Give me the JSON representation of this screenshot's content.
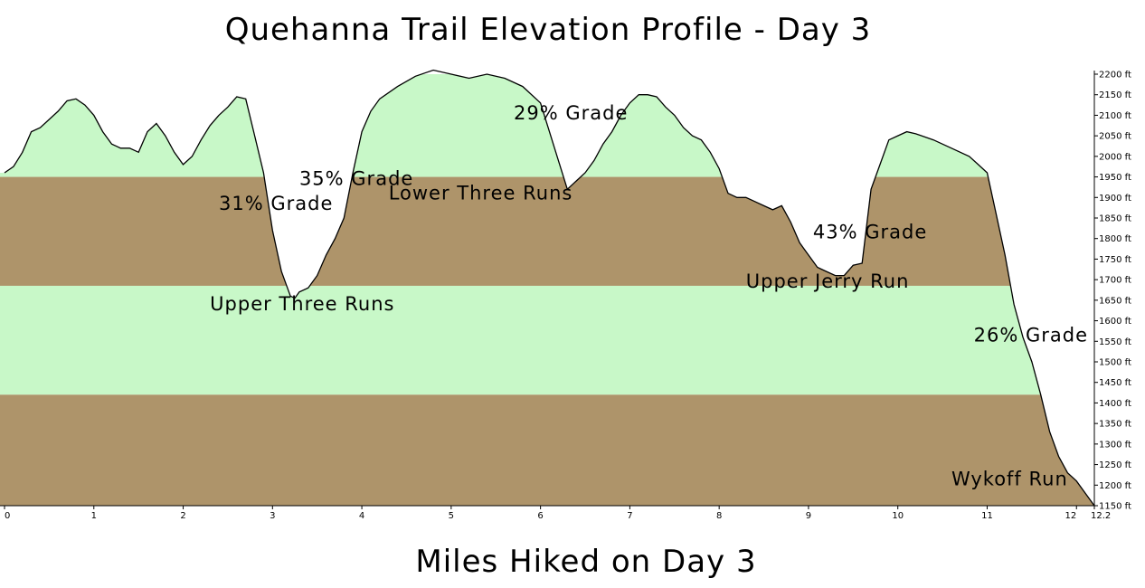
{
  "chart_data": {
    "type": "area",
    "title": "Quehanna Trail Elevation Profile - Day 3",
    "xlabel": "Miles Hiked on Day 3",
    "ylabel": "",
    "xlim": [
      0,
      12.2
    ],
    "ylim": [
      1150,
      2200
    ],
    "x_ticks": [
      {
        "value": 0,
        "label": "0"
      },
      {
        "value": 1,
        "label": "1"
      },
      {
        "value": 2,
        "label": "2"
      },
      {
        "value": 3,
        "label": "3"
      },
      {
        "value": 4,
        "label": "4"
      },
      {
        "value": 5,
        "label": "5"
      },
      {
        "value": 6,
        "label": "6"
      },
      {
        "value": 7,
        "label": "7"
      },
      {
        "value": 8,
        "label": "8"
      },
      {
        "value": 9,
        "label": "9"
      },
      {
        "value": 10,
        "label": "10"
      },
      {
        "value": 11,
        "label": "11"
      },
      {
        "value": 12,
        "label": "12"
      },
      {
        "value": 12.2,
        "label": "12.2"
      }
    ],
    "y_ticks": [
      {
        "value": 2200,
        "label": "2200 ft"
      },
      {
        "value": 2150,
        "label": "2150 ft"
      },
      {
        "value": 2100,
        "label": "2100 ft"
      },
      {
        "value": 2050,
        "label": "2050 ft"
      },
      {
        "value": 2000,
        "label": "2000 ft"
      },
      {
        "value": 1950,
        "label": "1950 ft"
      },
      {
        "value": 1900,
        "label": "1900 ft"
      },
      {
        "value": 1850,
        "label": "1850 ft"
      },
      {
        "value": 1800,
        "label": "1800 ft"
      },
      {
        "value": 1750,
        "label": "1750 ft"
      },
      {
        "value": 1700,
        "label": "1700 ft"
      },
      {
        "value": 1650,
        "label": "1650 ft"
      },
      {
        "value": 1600,
        "label": "1600 ft"
      },
      {
        "value": 1550,
        "label": "1550 ft"
      },
      {
        "value": 1500,
        "label": "1500 ft"
      },
      {
        "value": 1450,
        "label": "1450 ft"
      },
      {
        "value": 1400,
        "label": "1400 ft"
      },
      {
        "value": 1350,
        "label": "1350 ft"
      },
      {
        "value": 1300,
        "label": "1300 ft"
      },
      {
        "value": 1250,
        "label": "1250 ft"
      },
      {
        "value": 1200,
        "label": "1200 ft"
      },
      {
        "value": 1150,
        "label": "1150 ft"
      }
    ],
    "bands": [
      {
        "from": 1950,
        "to": 2200,
        "color": "#c8f8c8"
      },
      {
        "from": 1685,
        "to": 1950,
        "color": "#ae946a"
      },
      {
        "from": 1420,
        "to": 1685,
        "color": "#c8f8c8"
      },
      {
        "from": 1150,
        "to": 1420,
        "color": "#ae946a"
      }
    ],
    "profile": {
      "x": [
        0,
        0.1,
        0.2,
        0.3,
        0.4,
        0.5,
        0.6,
        0.7,
        0.8,
        0.9,
        1.0,
        1.1,
        1.2,
        1.3,
        1.4,
        1.5,
        1.6,
        1.7,
        1.8,
        1.9,
        2.0,
        2.1,
        2.2,
        2.3,
        2.4,
        2.5,
        2.6,
        2.7,
        2.8,
        2.9,
        3.0,
        3.1,
        3.2,
        3.25,
        3.3,
        3.4,
        3.5,
        3.6,
        3.7,
        3.8,
        3.9,
        4.0,
        4.1,
        4.2,
        4.4,
        4.6,
        4.8,
        5.0,
        5.2,
        5.4,
        5.6,
        5.8,
        6.0,
        6.1,
        6.2,
        6.3,
        6.4,
        6.5,
        6.6,
        6.7,
        6.8,
        6.9,
        7.0,
        7.1,
        7.2,
        7.3,
        7.4,
        7.5,
        7.6,
        7.7,
        7.8,
        7.9,
        8.0,
        8.1,
        8.2,
        8.3,
        8.4,
        8.5,
        8.6,
        8.7,
        8.8,
        8.9,
        9.0,
        9.1,
        9.2,
        9.3,
        9.4,
        9.5,
        9.6,
        9.7,
        9.8,
        9.9,
        10.0,
        10.1,
        10.2,
        10.4,
        10.6,
        10.8,
        10.9,
        11.0,
        11.1,
        11.2,
        11.3,
        11.4,
        11.5,
        11.6,
        11.7,
        11.8,
        11.9,
        12.0,
        12.1,
        12.2
      ],
      "y": [
        1960,
        1975,
        2010,
        2060,
        2070,
        2090,
        2110,
        2135,
        2140,
        2125,
        2100,
        2060,
        2030,
        2020,
        2020,
        2010,
        2060,
        2080,
        2050,
        2010,
        1980,
        2000,
        2040,
        2075,
        2100,
        2120,
        2145,
        2140,
        2050,
        1960,
        1820,
        1720,
        1660,
        1655,
        1670,
        1680,
        1710,
        1760,
        1800,
        1850,
        1960,
        2060,
        2110,
        2140,
        2170,
        2195,
        2210,
        2200,
        2190,
        2200,
        2190,
        2170,
        2130,
        2060,
        1990,
        1920,
        1940,
        1960,
        1990,
        2030,
        2060,
        2100,
        2130,
        2150,
        2150,
        2145,
        2120,
        2100,
        2070,
        2050,
        2040,
        2010,
        1970,
        1910,
        1900,
        1900,
        1890,
        1880,
        1870,
        1880,
        1840,
        1790,
        1760,
        1730,
        1720,
        1710,
        1710,
        1735,
        1740,
        1920,
        1980,
        2040,
        2050,
        2060,
        2055,
        2040,
        2020,
        2000,
        1980,
        1960,
        1860,
        1760,
        1640,
        1560,
        1500,
        1420,
        1330,
        1270,
        1230,
        1210,
        1180,
        1150
      ]
    },
    "annotations": [
      {
        "text": "31% Grade",
        "x": 2.4,
        "y": 1870
      },
      {
        "text": "35% Grade",
        "x": 3.3,
        "y": 1930
      },
      {
        "text": "29% Grade",
        "x": 5.7,
        "y": 2090
      },
      {
        "text": "Lower Three Runs",
        "x": 4.3,
        "y": 1895
      },
      {
        "text": "Upper Three Runs",
        "x": 2.3,
        "y": 1625
      },
      {
        "text": "43% Grade",
        "x": 9.05,
        "y": 1800
      },
      {
        "text": "Upper Jerry Run",
        "x": 8.3,
        "y": 1680
      },
      {
        "text": "26% Grade",
        "x": 10.85,
        "y": 1550
      },
      {
        "text": "Wykoff Run",
        "x": 10.6,
        "y": 1200
      }
    ],
    "grid": false,
    "colors": {
      "light_band": "#c8f8c8",
      "dark_band": "#ae946a",
      "outline": "#000000"
    }
  }
}
